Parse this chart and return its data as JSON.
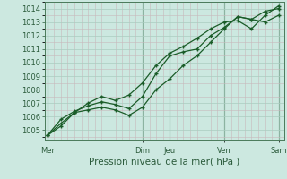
{
  "xlabel": "Pression niveau de la mer( hPa )",
  "bg_color": "#cce8e0",
  "grid_major_color": "#aaccc0",
  "grid_minor_color": "#c8b8bc",
  "line_color": "#1a5c28",
  "day_labels": [
    "Mer",
    "Dim",
    "Jeu",
    "Ven",
    "Sam"
  ],
  "day_positions": [
    0.0,
    3.5,
    4.5,
    6.5,
    8.5
  ],
  "ylim": [
    1004.3,
    1014.5
  ],
  "yticks": [
    1005,
    1006,
    1007,
    1008,
    1009,
    1010,
    1011,
    1012,
    1013,
    1014
  ],
  "xlim": [
    -0.1,
    8.7
  ],
  "series1_x": [
    0.0,
    0.5,
    1.0,
    1.5,
    2.0,
    2.5,
    3.0,
    3.5,
    4.0,
    4.5,
    5.0,
    5.5,
    6.0,
    6.5,
    7.0,
    7.5,
    8.0,
    8.5
  ],
  "series1_y": [
    1004.6,
    1005.3,
    1006.3,
    1006.5,
    1006.7,
    1006.5,
    1006.1,
    1006.7,
    1008.0,
    1008.8,
    1009.8,
    1010.5,
    1011.5,
    1012.5,
    1013.4,
    1013.2,
    1013.0,
    1013.5
  ],
  "series2_x": [
    0.0,
    0.5,
    1.0,
    1.5,
    2.0,
    2.5,
    3.0,
    3.5,
    4.0,
    4.5,
    5.0,
    5.5,
    6.0,
    6.5,
    7.0,
    7.5,
    8.0,
    8.5
  ],
  "series2_y": [
    1004.6,
    1005.8,
    1006.4,
    1006.8,
    1007.1,
    1006.9,
    1006.6,
    1007.5,
    1009.2,
    1010.5,
    1010.8,
    1011.0,
    1012.0,
    1012.6,
    1013.4,
    1013.2,
    1013.8,
    1014.0
  ],
  "series3_x": [
    0.0,
    0.5,
    1.0,
    1.5,
    2.0,
    2.5,
    3.0,
    3.5,
    4.0,
    4.5,
    5.0,
    5.5,
    6.0,
    6.5,
    7.0,
    7.5,
    8.0,
    8.5
  ],
  "series3_y": [
    1004.6,
    1005.5,
    1006.3,
    1007.0,
    1007.5,
    1007.2,
    1007.6,
    1008.5,
    1009.8,
    1010.7,
    1011.2,
    1011.8,
    1012.5,
    1013.0,
    1013.1,
    1012.5,
    1013.5,
    1014.2
  ],
  "vline_positions": [
    0.0,
    3.5,
    4.5,
    6.5,
    8.5
  ],
  "vline_color": "#4a7a5a",
  "marker_size": 3.5,
  "linewidth": 0.9,
  "tick_fontsize": 6,
  "label_fontsize": 7.5
}
